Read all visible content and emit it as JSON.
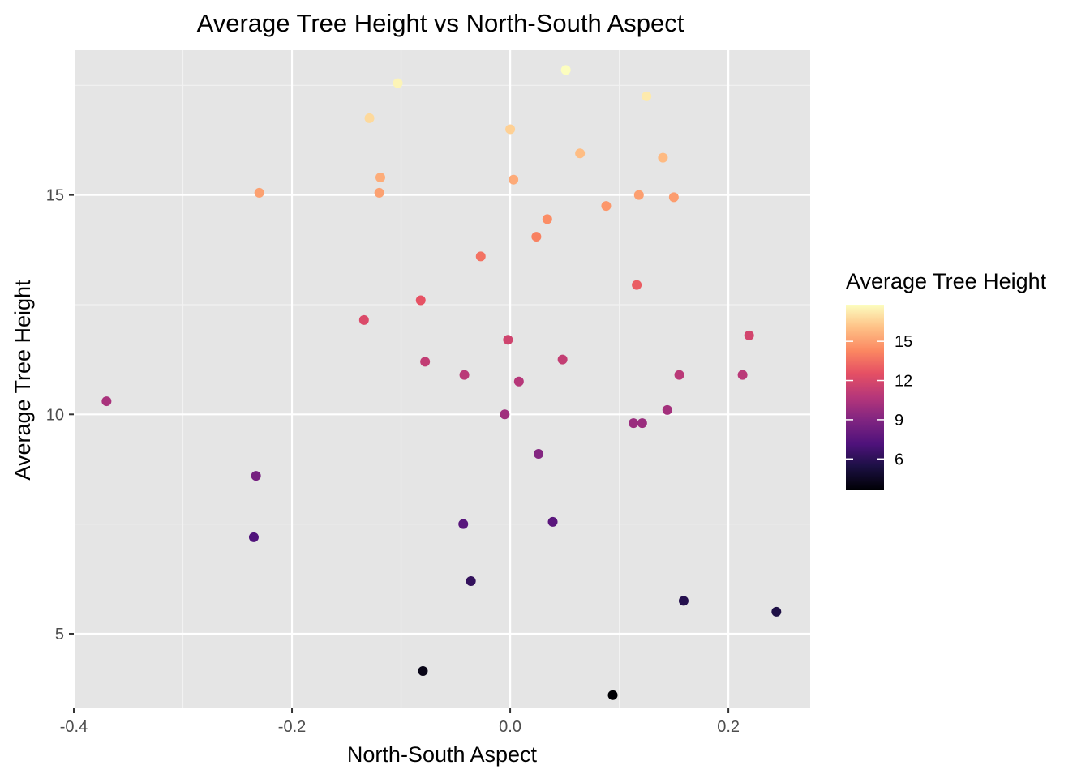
{
  "chart_data": {
    "type": "scatter",
    "title": "Average Tree Height vs North-South Aspect",
    "xlabel": "North-South Aspect",
    "ylabel": "Average Tree Height",
    "xlim": [
      -0.4,
      0.275
    ],
    "ylim": [
      3.3,
      18.3
    ],
    "x_ticks": [
      -0.4,
      -0.2,
      0.0,
      0.2
    ],
    "x_tick_labels": [
      "-0.4",
      "-0.2",
      "0.0",
      "0.2"
    ],
    "y_ticks": [
      5,
      10,
      15
    ],
    "y_tick_labels": [
      "5",
      "10",
      "15"
    ],
    "grid": true,
    "background": "#e5e5e5",
    "legend": {
      "title": "Average Tree Height",
      "position": "right",
      "ticks": [
        6,
        9,
        12,
        15
      ],
      "tick_labels": [
        "6",
        "9",
        "12",
        "15"
      ],
      "range": [
        3.6,
        17.8
      ],
      "colormap": "magma"
    },
    "points": [
      {
        "x": -0.37,
        "y": 10.3
      },
      {
        "x": -0.23,
        "y": 15.05
      },
      {
        "x": -0.233,
        "y": 8.6
      },
      {
        "x": -0.235,
        "y": 7.2
      },
      {
        "x": -0.134,
        "y": 12.15
      },
      {
        "x": -0.129,
        "y": 16.75
      },
      {
        "x": -0.119,
        "y": 15.4
      },
      {
        "x": -0.12,
        "y": 15.05
      },
      {
        "x": -0.103,
        "y": 17.55
      },
      {
        "x": -0.082,
        "y": 12.6
      },
      {
        "x": -0.078,
        "y": 11.2
      },
      {
        "x": -0.08,
        "y": 4.15
      },
      {
        "x": -0.042,
        "y": 10.9
      },
      {
        "x": -0.043,
        "y": 7.5
      },
      {
        "x": -0.036,
        "y": 6.2
      },
      {
        "x": -0.027,
        "y": 13.6
      },
      {
        "x": -0.005,
        "y": 10.0
      },
      {
        "x": -0.002,
        "y": 11.7
      },
      {
        "x": 0.0,
        "y": 16.5
      },
      {
        "x": 0.003,
        "y": 15.35
      },
      {
        "x": 0.008,
        "y": 10.75
      },
      {
        "x": 0.024,
        "y": 14.05
      },
      {
        "x": 0.026,
        "y": 9.1
      },
      {
        "x": 0.034,
        "y": 14.45
      },
      {
        "x": 0.039,
        "y": 7.55
      },
      {
        "x": 0.048,
        "y": 11.25
      },
      {
        "x": 0.051,
        "y": 17.85
      },
      {
        "x": 0.064,
        "y": 15.95
      },
      {
        "x": 0.088,
        "y": 14.75
      },
      {
        "x": 0.094,
        "y": 3.6
      },
      {
        "x": 0.113,
        "y": 9.8
      },
      {
        "x": 0.116,
        "y": 12.95
      },
      {
        "x": 0.118,
        "y": 15.0
      },
      {
        "x": 0.121,
        "y": 9.8
      },
      {
        "x": 0.125,
        "y": 17.25
      },
      {
        "x": 0.14,
        "y": 15.85
      },
      {
        "x": 0.144,
        "y": 10.1
      },
      {
        "x": 0.15,
        "y": 14.95
      },
      {
        "x": 0.155,
        "y": 10.9
      },
      {
        "x": 0.159,
        "y": 5.75
      },
      {
        "x": 0.213,
        "y": 10.9
      },
      {
        "x": 0.219,
        "y": 11.8
      },
      {
        "x": 0.244,
        "y": 5.5
      }
    ]
  }
}
